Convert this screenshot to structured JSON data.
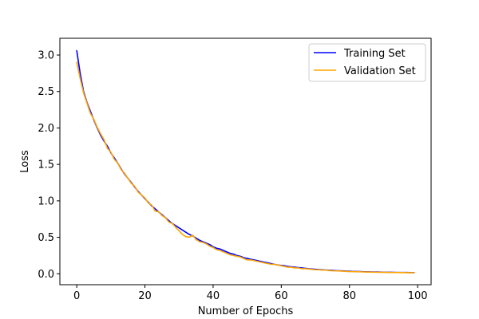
{
  "chart_data": {
    "type": "line",
    "title": "",
    "xlabel": "Number of Epochs",
    "ylabel": "Loss",
    "xlim": [
      -4.95,
      103.95
    ],
    "ylim": [
      -0.15,
      3.23
    ],
    "x_ticks": [
      0,
      20,
      40,
      60,
      80,
      100
    ],
    "y_ticks": [
      0.0,
      0.5,
      1.0,
      1.5,
      2.0,
      2.5,
      3.0
    ],
    "grid": false,
    "legend_position": "top-right",
    "series": [
      {
        "name": "Training Set",
        "color": "#0000ff",
        "x": [
          0,
          1,
          2,
          3,
          4,
          5,
          6,
          7,
          8,
          9,
          10,
          11,
          12,
          13,
          14,
          15,
          16,
          17,
          18,
          19,
          20,
          21,
          22,
          23,
          24,
          25,
          26,
          27,
          28,
          29,
          30,
          31,
          32,
          33,
          34,
          35,
          36,
          37,
          38,
          39,
          40,
          41,
          42,
          43,
          44,
          45,
          46,
          47,
          48,
          49,
          50,
          51,
          52,
          53,
          54,
          55,
          56,
          57,
          58,
          59,
          60,
          61,
          62,
          63,
          64,
          65,
          66,
          67,
          68,
          69,
          70,
          71,
          72,
          73,
          74,
          75,
          76,
          77,
          78,
          79,
          80,
          81,
          82,
          83,
          84,
          85,
          86,
          87,
          88,
          89,
          90,
          91,
          92,
          93,
          94,
          95,
          96,
          97,
          98,
          99
        ],
        "y": [
          3.06,
          2.75,
          2.5,
          2.35,
          2.23,
          2.11,
          2.0,
          1.9,
          1.82,
          1.75,
          1.66,
          1.59,
          1.52,
          1.44,
          1.37,
          1.31,
          1.25,
          1.19,
          1.13,
          1.08,
          1.03,
          0.98,
          0.93,
          0.89,
          0.85,
          0.81,
          0.77,
          0.73,
          0.69,
          0.66,
          0.63,
          0.6,
          0.57,
          0.54,
          0.52,
          0.49,
          0.46,
          0.44,
          0.42,
          0.4,
          0.37,
          0.35,
          0.34,
          0.32,
          0.3,
          0.28,
          0.27,
          0.25,
          0.24,
          0.22,
          0.21,
          0.2,
          0.19,
          0.18,
          0.17,
          0.16,
          0.15,
          0.14,
          0.13,
          0.12,
          0.115,
          0.11,
          0.1,
          0.095,
          0.09,
          0.085,
          0.08,
          0.075,
          0.07,
          0.066,
          0.062,
          0.058,
          0.055,
          0.052,
          0.049,
          0.046,
          0.043,
          0.041,
          0.039,
          0.037,
          0.035,
          0.033,
          0.031,
          0.03,
          0.028,
          0.027,
          0.026,
          0.025,
          0.024,
          0.023,
          0.022,
          0.021,
          0.02,
          0.019,
          0.018,
          0.018,
          0.017,
          0.017,
          0.016,
          0.016
        ]
      },
      {
        "name": "Validation Set",
        "color": "#ffa500",
        "x": [
          0,
          1,
          2,
          3,
          4,
          5,
          6,
          7,
          8,
          9,
          10,
          11,
          12,
          13,
          14,
          15,
          16,
          17,
          18,
          19,
          20,
          21,
          22,
          23,
          24,
          25,
          26,
          27,
          28,
          29,
          30,
          31,
          32,
          33,
          34,
          35,
          36,
          37,
          38,
          39,
          40,
          41,
          42,
          43,
          44,
          45,
          46,
          47,
          48,
          49,
          50,
          51,
          52,
          53,
          54,
          55,
          56,
          57,
          58,
          59,
          60,
          61,
          62,
          63,
          64,
          65,
          66,
          67,
          68,
          69,
          70,
          71,
          72,
          73,
          74,
          75,
          76,
          77,
          78,
          79,
          80,
          81,
          82,
          83,
          84,
          85,
          86,
          87,
          88,
          89,
          90,
          91,
          92,
          93,
          94,
          95,
          96,
          97,
          98,
          99
        ],
        "y": [
          2.9,
          2.68,
          2.48,
          2.34,
          2.2,
          2.12,
          2.01,
          1.92,
          1.84,
          1.72,
          1.67,
          1.57,
          1.52,
          1.43,
          1.38,
          1.31,
          1.24,
          1.2,
          1.12,
          1.08,
          1.04,
          0.97,
          0.94,
          0.86,
          0.85,
          0.8,
          0.77,
          0.71,
          0.69,
          0.64,
          0.59,
          0.54,
          0.51,
          0.5,
          0.53,
          0.47,
          0.44,
          0.43,
          0.41,
          0.38,
          0.36,
          0.33,
          0.32,
          0.3,
          0.28,
          0.26,
          0.25,
          0.24,
          0.23,
          0.21,
          0.19,
          0.19,
          0.18,
          0.17,
          0.16,
          0.15,
          0.14,
          0.13,
          0.13,
          0.12,
          0.11,
          0.1,
          0.09,
          0.09,
          0.08,
          0.08,
          0.07,
          0.07,
          0.065,
          0.06,
          0.055,
          0.055,
          0.05,
          0.05,
          0.045,
          0.04,
          0.04,
          0.038,
          0.035,
          0.032,
          0.03,
          0.03,
          0.028,
          0.027,
          0.025,
          0.024,
          0.023,
          0.022,
          0.021,
          0.02,
          0.02,
          0.019,
          0.018,
          0.018,
          0.017,
          0.016,
          0.016,
          0.015,
          0.015,
          0.015
        ]
      }
    ]
  }
}
